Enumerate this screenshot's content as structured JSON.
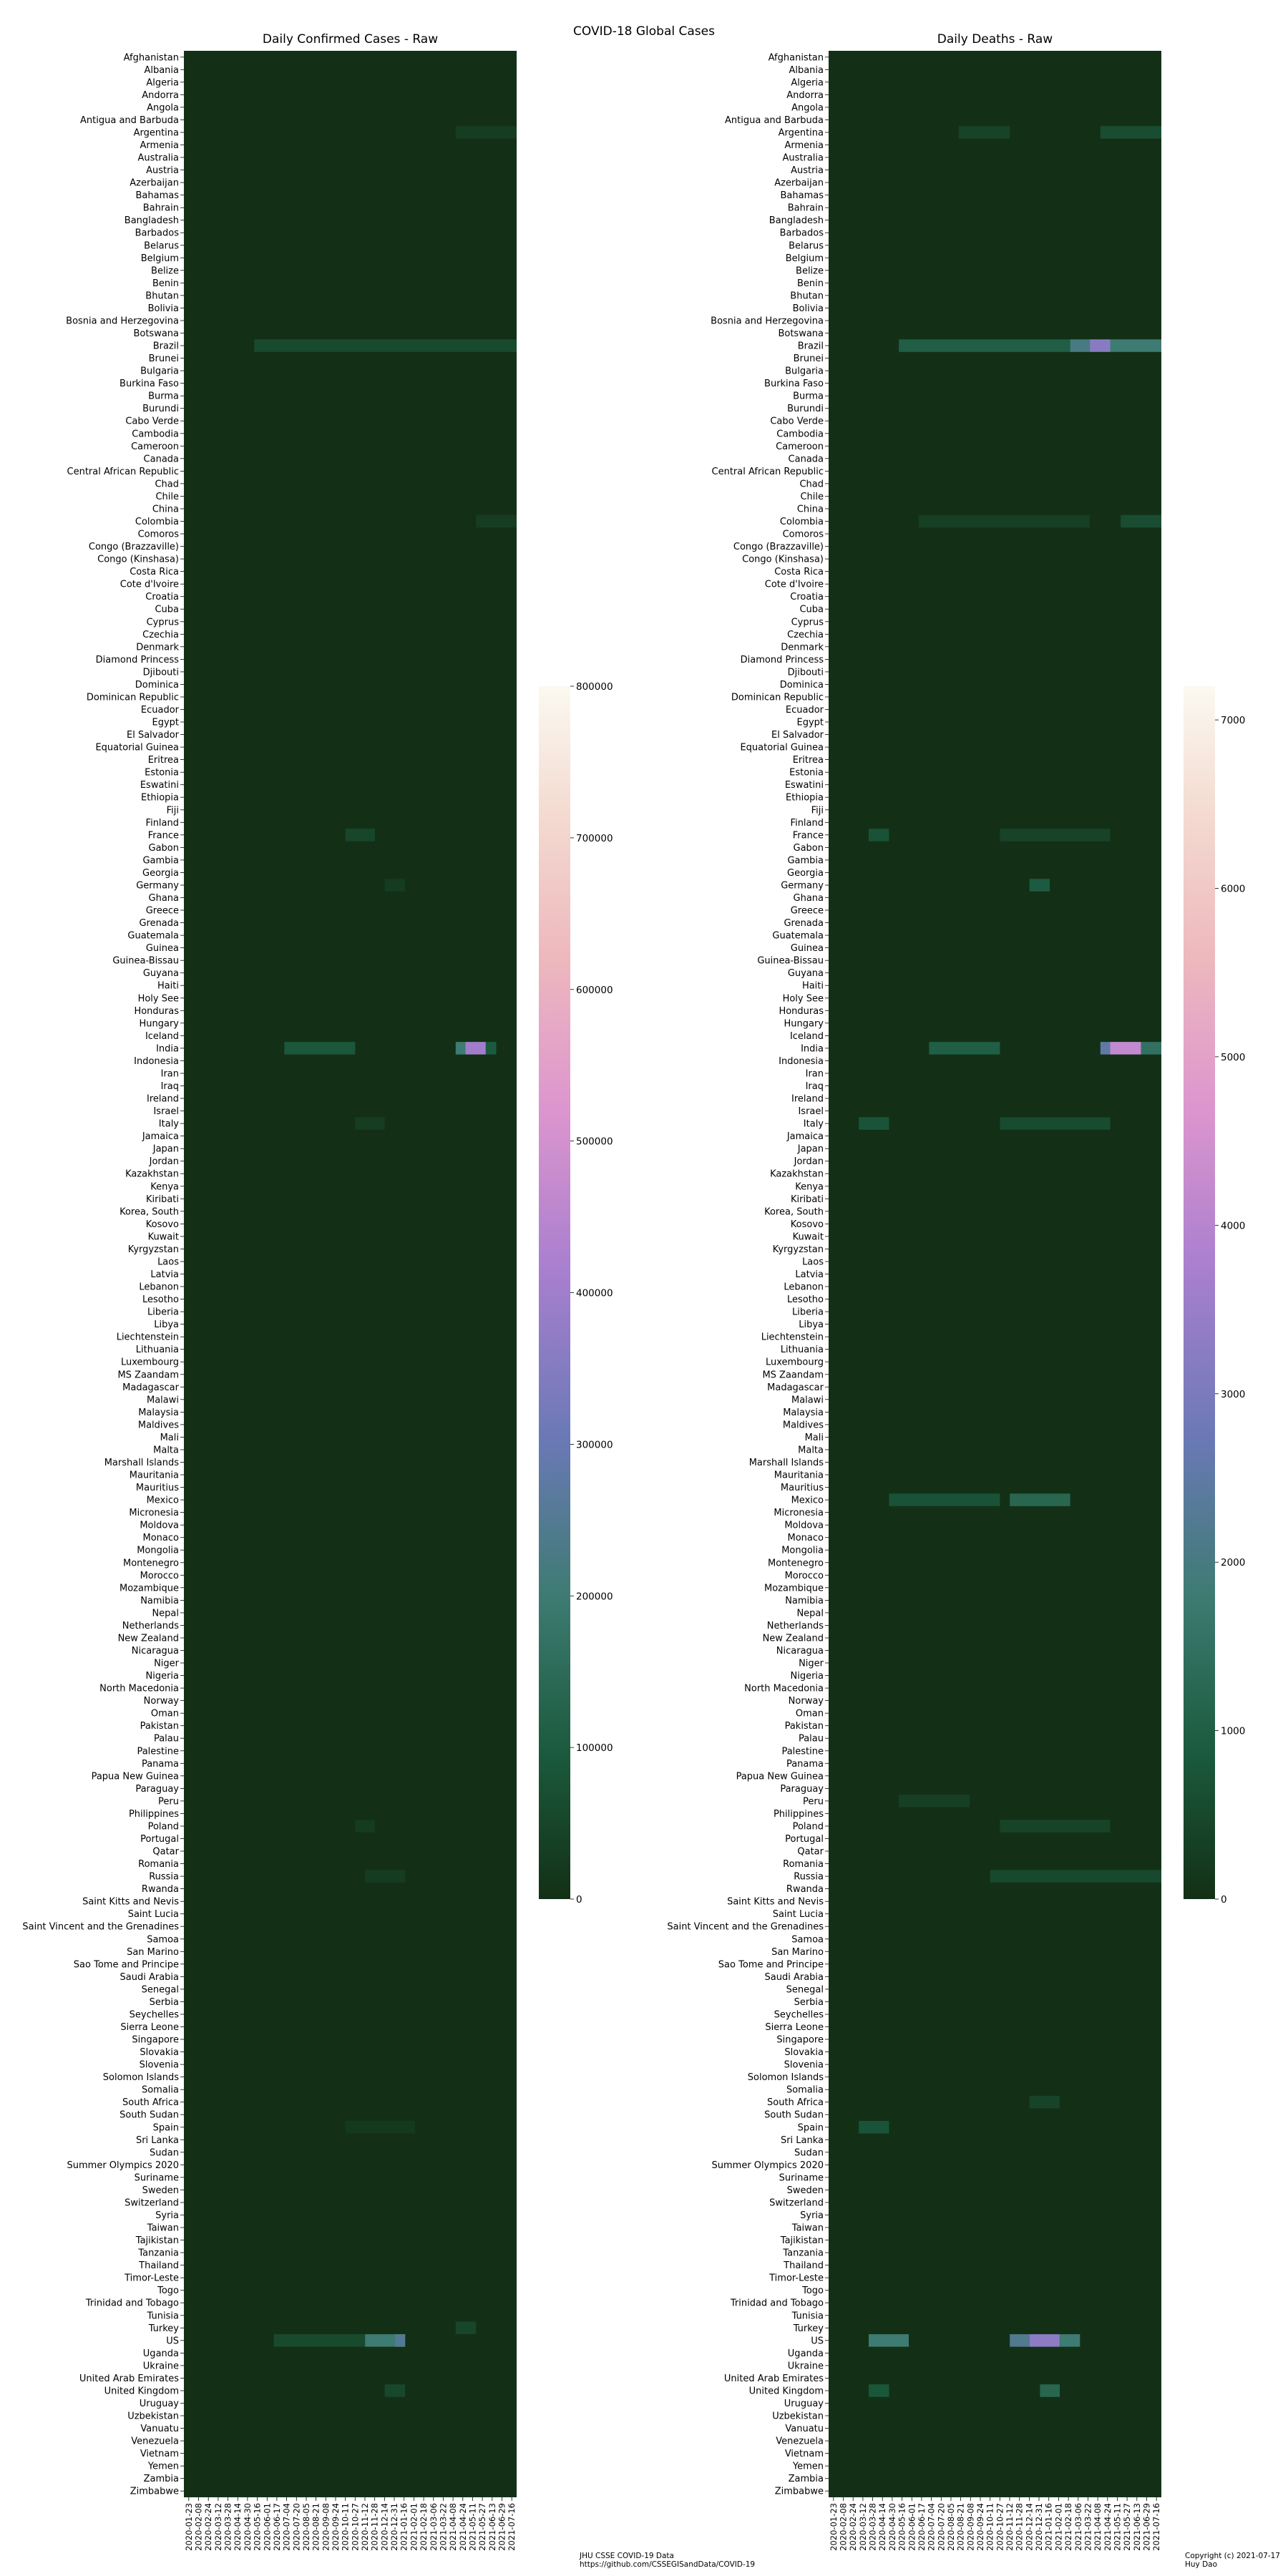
{
  "figure": {
    "suptitle": "COVID-18 Global Cases",
    "footer_source_line1": "JHU CSSE COVID-19 Data",
    "footer_source_line2": "https://github.com/CSSEGISandData/COVID-19",
    "footer_copyright_line1": "Copyright (c) 2021-07-17",
    "footer_copyright_line2": "Huy Dao"
  },
  "chart_data": [
    {
      "type": "heatmap",
      "title": "Daily Confirmed Cases - Raw",
      "xlabel": "",
      "ylabel": "",
      "colormap": "cubehelix",
      "background_color": "#133016",
      "colorbar_range": [
        0,
        800000
      ],
      "colorbar_ticks": [
        0,
        100000,
        200000,
        300000,
        400000,
        500000,
        600000,
        700000,
        800000
      ],
      "x_tick_labels": [
        "2020-01-23",
        "2020-02-08",
        "2020-02-24",
        "2020-03-12",
        "2020-03-28",
        "2020-04-14",
        "2020-04-30",
        "2020-05-16",
        "2020-06-01",
        "2020-06-17",
        "2020-07-04",
        "2020-07-20",
        "2020-08-05",
        "2020-08-21",
        "2020-09-08",
        "2020-09-24",
        "2020-10-11",
        "2020-10-27",
        "2020-11-12",
        "2020-11-28",
        "2020-12-14",
        "2020-12-31",
        "2021-01-16",
        "2021-02-01",
        "2021-02-18",
        "2021-03-06",
        "2021-03-22",
        "2021-04-08",
        "2021-04-24",
        "2021-05-11",
        "2021-05-27",
        "2021-06-13",
        "2021-06-29",
        "2021-07-16"
      ],
      "hotspots": [
        {
          "country": "Argentina",
          "start": "2021-04-08",
          "end": "2021-07-16",
          "value": 30000
        },
        {
          "country": "Brazil",
          "start": "2020-05-16",
          "end": "2021-07-16",
          "value": 60000
        },
        {
          "country": "Colombia",
          "start": "2021-05-11",
          "end": "2021-07-16",
          "value": 30000
        },
        {
          "country": "France",
          "start": "2020-10-11",
          "end": "2020-11-28",
          "value": 50000
        },
        {
          "country": "Germany",
          "start": "2020-12-14",
          "end": "2021-01-16",
          "value": 25000
        },
        {
          "country": "India",
          "start": "2020-07-04",
          "end": "2020-10-27",
          "value": 90000
        },
        {
          "country": "India",
          "start": "2021-04-08",
          "end": "2021-04-24",
          "value": 200000
        },
        {
          "country": "India",
          "start": "2021-04-24",
          "end": "2021-05-27",
          "value": 400000
        },
        {
          "country": "India",
          "start": "2021-05-27",
          "end": "2021-06-13",
          "value": 100000
        },
        {
          "country": "Italy",
          "start": "2020-10-27",
          "end": "2020-12-14",
          "value": 30000
        },
        {
          "country": "Poland",
          "start": "2020-10-27",
          "end": "2020-11-28",
          "value": 25000
        },
        {
          "country": "Russia",
          "start": "2020-11-12",
          "end": "2021-01-16",
          "value": 27000
        },
        {
          "country": "Spain",
          "start": "2020-10-11",
          "end": "2021-02-01",
          "value": 20000
        },
        {
          "country": "Turkey",
          "start": "2021-04-08",
          "end": "2021-05-11",
          "value": 50000
        },
        {
          "country": "US",
          "start": "2020-06-17",
          "end": "2020-11-12",
          "value": 60000
        },
        {
          "country": "US",
          "start": "2020-11-12",
          "end": "2021-01-16",
          "value": 200000
        },
        {
          "country": "US",
          "start": "2020-12-31",
          "end": "2021-01-16",
          "value": 250000
        },
        {
          "country": "United Kingdom",
          "start": "2020-12-14",
          "end": "2021-01-16",
          "value": 55000
        }
      ]
    },
    {
      "type": "heatmap",
      "title": "Daily Deaths - Raw",
      "xlabel": "",
      "ylabel": "",
      "colormap": "cubehelix",
      "background_color": "#133016",
      "colorbar_range": [
        0,
        7200
      ],
      "colorbar_ticks": [
        0,
        1000,
        2000,
        3000,
        4000,
        5000,
        6000,
        7000
      ],
      "x_tick_labels": [
        "2020-01-23",
        "2020-02-08",
        "2020-02-24",
        "2020-03-12",
        "2020-03-28",
        "2020-04-14",
        "2020-04-30",
        "2020-05-16",
        "2020-06-01",
        "2020-06-17",
        "2020-07-04",
        "2020-07-20",
        "2020-08-05",
        "2020-08-21",
        "2020-09-08",
        "2020-09-24",
        "2020-10-11",
        "2020-10-27",
        "2020-11-12",
        "2020-11-28",
        "2020-12-14",
        "2020-12-31",
        "2021-01-16",
        "2021-02-01",
        "2021-02-18",
        "2021-03-06",
        "2021-03-22",
        "2021-04-08",
        "2021-04-24",
        "2021-05-11",
        "2021-05-27",
        "2021-06-13",
        "2021-06-29",
        "2021-07-16"
      ],
      "hotspots": [
        {
          "country": "Argentina",
          "start": "2020-08-21",
          "end": "2020-11-12",
          "value": 400
        },
        {
          "country": "Argentina",
          "start": "2021-04-08",
          "end": "2021-07-16",
          "value": 600
        },
        {
          "country": "Brazil",
          "start": "2020-05-16",
          "end": "2021-02-18",
          "value": 1000
        },
        {
          "country": "Brazil",
          "start": "2021-02-18",
          "end": "2021-03-22",
          "value": 2000
        },
        {
          "country": "Brazil",
          "start": "2021-03-22",
          "end": "2021-04-24",
          "value": 3200
        },
        {
          "country": "Brazil",
          "start": "2021-04-24",
          "end": "2021-07-16",
          "value": 1800
        },
        {
          "country": "Colombia",
          "start": "2020-06-17",
          "end": "2021-03-22",
          "value": 300
        },
        {
          "country": "Colombia",
          "start": "2021-05-11",
          "end": "2021-07-16",
          "value": 600
        },
        {
          "country": "France",
          "start": "2020-03-28",
          "end": "2020-04-30",
          "value": 700
        },
        {
          "country": "France",
          "start": "2020-10-27",
          "end": "2021-04-24",
          "value": 400
        },
        {
          "country": "Germany",
          "start": "2020-12-14",
          "end": "2021-01-16",
          "value": 900
        },
        {
          "country": "India",
          "start": "2020-07-04",
          "end": "2020-10-27",
          "value": 1000
        },
        {
          "country": "India",
          "start": "2021-04-08",
          "end": "2021-04-24",
          "value": 2500
        },
        {
          "country": "India",
          "start": "2021-04-24",
          "end": "2021-06-13",
          "value": 4200
        },
        {
          "country": "India",
          "start": "2021-06-13",
          "end": "2021-07-16",
          "value": 1500
        },
        {
          "country": "Italy",
          "start": "2020-03-12",
          "end": "2020-04-30",
          "value": 750
        },
        {
          "country": "Italy",
          "start": "2020-10-27",
          "end": "2021-04-24",
          "value": 550
        },
        {
          "country": "Mexico",
          "start": "2020-04-30",
          "end": "2020-10-27",
          "value": 700
        },
        {
          "country": "Mexico",
          "start": "2020-11-12",
          "end": "2021-02-18",
          "value": 1200
        },
        {
          "country": "Peru",
          "start": "2020-05-16",
          "end": "2020-09-08",
          "value": 300
        },
        {
          "country": "Poland",
          "start": "2020-10-27",
          "end": "2021-04-24",
          "value": 400
        },
        {
          "country": "Russia",
          "start": "2020-10-11",
          "end": "2021-07-16",
          "value": 500
        },
        {
          "country": "South Africa",
          "start": "2020-12-14",
          "end": "2021-02-01",
          "value": 400
        },
        {
          "country": "Spain",
          "start": "2020-03-12",
          "end": "2020-04-30",
          "value": 750
        },
        {
          "country": "US",
          "start": "2020-03-28",
          "end": "2020-06-01",
          "value": 1800
        },
        {
          "country": "US",
          "start": "2020-11-12",
          "end": "2020-12-14",
          "value": 2200
        },
        {
          "country": "US",
          "start": "2020-12-14",
          "end": "2021-02-01",
          "value": 3300
        },
        {
          "country": "US",
          "start": "2021-02-01",
          "end": "2021-03-06",
          "value": 1800
        },
        {
          "country": "United Kingdom",
          "start": "2020-03-28",
          "end": "2020-04-30",
          "value": 800
        },
        {
          "country": "United Kingdom",
          "start": "2020-12-31",
          "end": "2021-02-01",
          "value": 1200
        }
      ]
    }
  ],
  "countries": [
    "Afghanistan",
    "Albania",
    "Algeria",
    "Andorra",
    "Angola",
    "Antigua and Barbuda",
    "Argentina",
    "Armenia",
    "Australia",
    "Austria",
    "Azerbaijan",
    "Bahamas",
    "Bahrain",
    "Bangladesh",
    "Barbados",
    "Belarus",
    "Belgium",
    "Belize",
    "Benin",
    "Bhutan",
    "Bolivia",
    "Bosnia and Herzegovina",
    "Botswana",
    "Brazil",
    "Brunei",
    "Bulgaria",
    "Burkina Faso",
    "Burma",
    "Burundi",
    "Cabo Verde",
    "Cambodia",
    "Cameroon",
    "Canada",
    "Central African Republic",
    "Chad",
    "Chile",
    "China",
    "Colombia",
    "Comoros",
    "Congo (Brazzaville)",
    "Congo (Kinshasa)",
    "Costa Rica",
    "Cote d'Ivoire",
    "Croatia",
    "Cuba",
    "Cyprus",
    "Czechia",
    "Denmark",
    "Diamond Princess",
    "Djibouti",
    "Dominica",
    "Dominican Republic",
    "Ecuador",
    "Egypt",
    "El Salvador",
    "Equatorial Guinea",
    "Eritrea",
    "Estonia",
    "Eswatini",
    "Ethiopia",
    "Fiji",
    "Finland",
    "France",
    "Gabon",
    "Gambia",
    "Georgia",
    "Germany",
    "Ghana",
    "Greece",
    "Grenada",
    "Guatemala",
    "Guinea",
    "Guinea-Bissau",
    "Guyana",
    "Haiti",
    "Holy See",
    "Honduras",
    "Hungary",
    "Iceland",
    "India",
    "Indonesia",
    "Iran",
    "Iraq",
    "Ireland",
    "Israel",
    "Italy",
    "Jamaica",
    "Japan",
    "Jordan",
    "Kazakhstan",
    "Kenya",
    "Kiribati",
    "Korea, South",
    "Kosovo",
    "Kuwait",
    "Kyrgyzstan",
    "Laos",
    "Latvia",
    "Lebanon",
    "Lesotho",
    "Liberia",
    "Libya",
    "Liechtenstein",
    "Lithuania",
    "Luxembourg",
    "MS Zaandam",
    "Madagascar",
    "Malawi",
    "Malaysia",
    "Maldives",
    "Mali",
    "Malta",
    "Marshall Islands",
    "Mauritania",
    "Mauritius",
    "Mexico",
    "Micronesia",
    "Moldova",
    "Monaco",
    "Mongolia",
    "Montenegro",
    "Morocco",
    "Mozambique",
    "Namibia",
    "Nepal",
    "Netherlands",
    "New Zealand",
    "Nicaragua",
    "Niger",
    "Nigeria",
    "North Macedonia",
    "Norway",
    "Oman",
    "Pakistan",
    "Palau",
    "Palestine",
    "Panama",
    "Papua New Guinea",
    "Paraguay",
    "Peru",
    "Philippines",
    "Poland",
    "Portugal",
    "Qatar",
    "Romania",
    "Russia",
    "Rwanda",
    "Saint Kitts and Nevis",
    "Saint Lucia",
    "Saint Vincent and the Grenadines",
    "Samoa",
    "San Marino",
    "Sao Tome and Principe",
    "Saudi Arabia",
    "Senegal",
    "Serbia",
    "Seychelles",
    "Sierra Leone",
    "Singapore",
    "Slovakia",
    "Slovenia",
    "Solomon Islands",
    "Somalia",
    "South Africa",
    "South Sudan",
    "Spain",
    "Sri Lanka",
    "Sudan",
    "Summer Olympics 2020",
    "Suriname",
    "Sweden",
    "Switzerland",
    "Syria",
    "Taiwan",
    "Tajikistan",
    "Tanzania",
    "Thailand",
    "Timor-Leste",
    "Togo",
    "Trinidad and Tobago",
    "Tunisia",
    "Turkey",
    "US",
    "Uganda",
    "Ukraine",
    "United Arab Emirates",
    "United Kingdom",
    "Uruguay",
    "Uzbekistan",
    "Vanuatu",
    "Venezuela",
    "Vietnam",
    "Yemen",
    "Zambia",
    "Zimbabwe"
  ]
}
